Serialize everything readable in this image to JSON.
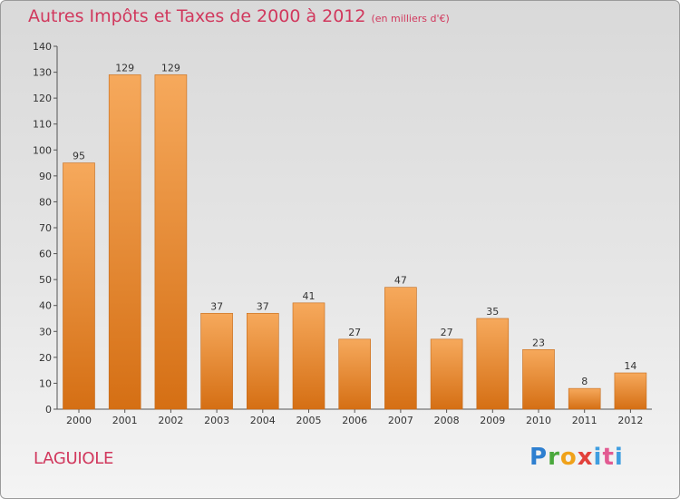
{
  "header": {
    "title": "Autres Impôts et Taxes de 2000 à 2012",
    "unit": "(en milliers d'€)"
  },
  "footer": {
    "commune": "LAGUIOLE",
    "logo_text": "Proxiti"
  },
  "colors": {
    "bar_light": "#f6a95c",
    "bar_dark": "#d56f14",
    "title": "#d1385d"
  },
  "chart_data": {
    "type": "bar",
    "title": "Autres Impôts et Taxes de 2000 à 2012",
    "subtitle": "(en milliers d'€)",
    "xlabel": "",
    "ylabel": "",
    "categories": [
      "2000",
      "2001",
      "2002",
      "2003",
      "2004",
      "2005",
      "2006",
      "2007",
      "2008",
      "2009",
      "2010",
      "2011",
      "2012"
    ],
    "values": [
      95,
      129,
      129,
      37,
      37,
      41,
      27,
      47,
      27,
      35,
      23,
      8,
      14
    ],
    "ylim": [
      0,
      140
    ],
    "yticks": [
      0,
      10,
      20,
      30,
      40,
      50,
      60,
      70,
      80,
      90,
      100,
      110,
      120,
      130,
      140
    ],
    "grid": false,
    "legend": "none"
  }
}
